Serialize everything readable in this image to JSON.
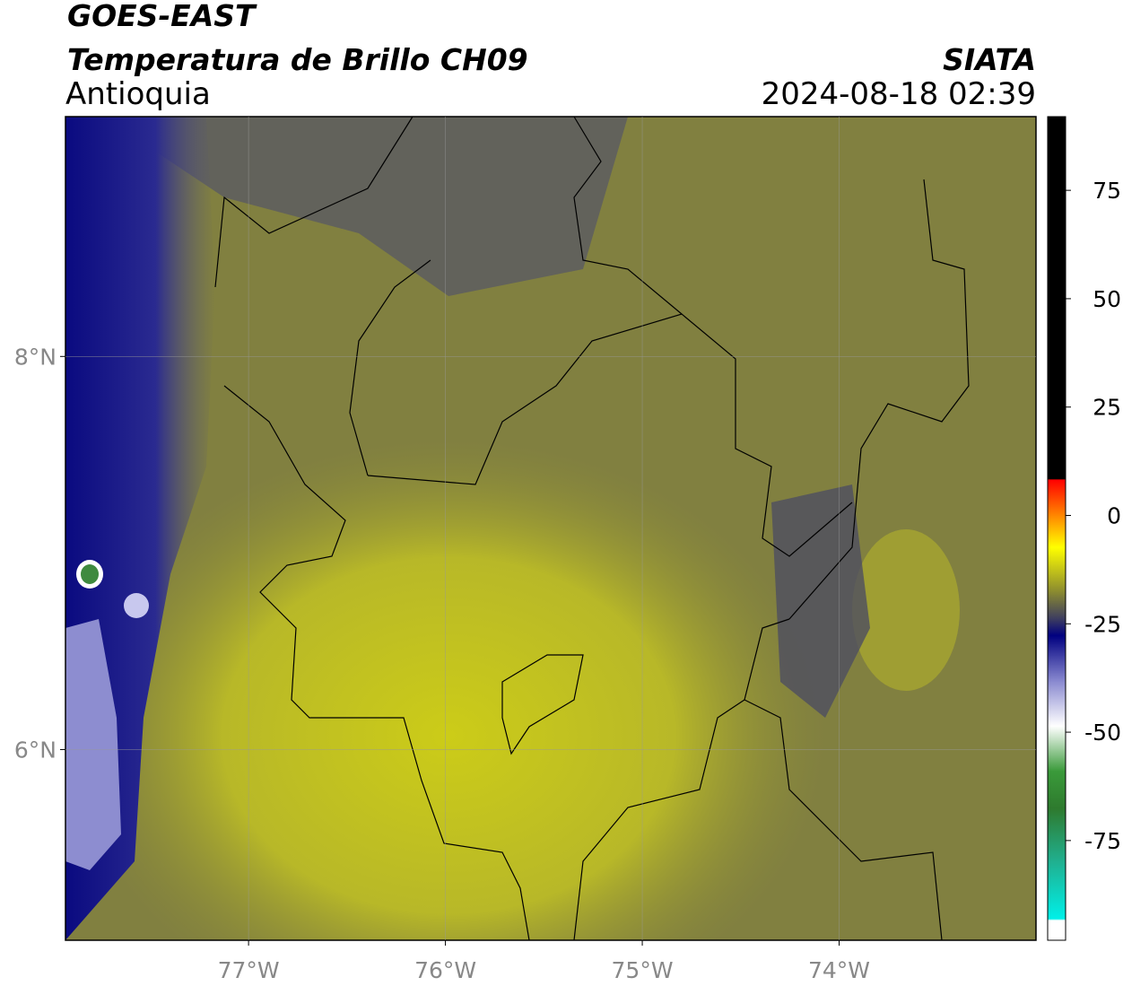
{
  "header": {
    "satellite": "GOES-EAST",
    "product": "Temperatura de Brillo CH09",
    "region": "Antioquia",
    "source": "SIATA",
    "timestamp": "2024-08-18 02:39"
  },
  "map": {
    "xlim": [
      -77.93,
      -73.0
    ],
    "ylim": [
      5.03,
      9.22
    ],
    "xticks": [
      {
        "value": -77,
        "label": "77°W"
      },
      {
        "value": -76,
        "label": "76°W"
      },
      {
        "value": -75,
        "label": "75°W"
      },
      {
        "value": -74,
        "label": "74°W"
      }
    ],
    "yticks": [
      {
        "value": 6,
        "label": "6°N"
      },
      {
        "value": 8,
        "label": "8°N"
      }
    ],
    "grid": true
  },
  "colorbar": {
    "lim": [
      -98,
      92
    ],
    "ticks": [
      75,
      50,
      25,
      0,
      -25,
      -50,
      -75
    ]
  }
}
